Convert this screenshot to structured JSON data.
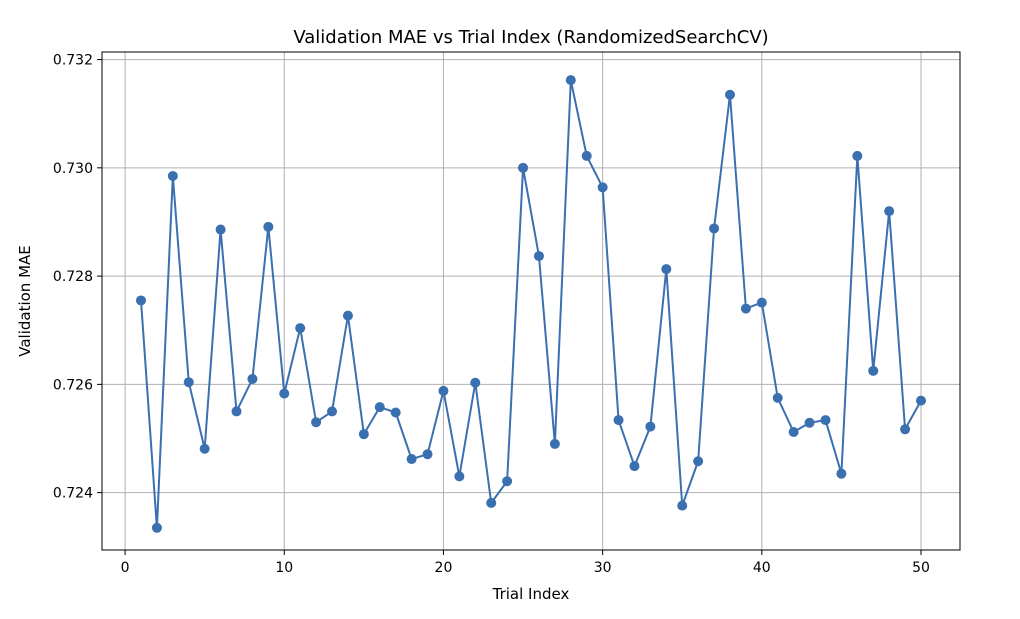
{
  "chart_data": {
    "type": "line",
    "title": "Validation MAE vs Trial Index (RandomizedSearchCV)",
    "xlabel": "Trial Index",
    "ylabel": "Validation MAE",
    "xlim": [
      -1.45,
      52.45
    ],
    "ylim": [
      0.72294,
      0.73214
    ],
    "xticks": [
      0,
      10,
      20,
      30,
      40,
      50
    ],
    "xtick_labels": [
      "0",
      "10",
      "20",
      "30",
      "40",
      "50"
    ],
    "yticks": [
      0.724,
      0.726,
      0.728,
      0.73,
      0.732
    ],
    "ytick_labels": [
      "0.724",
      "0.726",
      "0.728",
      "0.730",
      "0.732"
    ],
    "grid": true,
    "line_color": "#3a6fb0",
    "series": [
      {
        "x": [
          1,
          2,
          3,
          4,
          5,
          6,
          7,
          8,
          9,
          10,
          11,
          12,
          13,
          14,
          15,
          16,
          17,
          18,
          19,
          20,
          21,
          22,
          23,
          24,
          25,
          26,
          27,
          28,
          29,
          30,
          31,
          32,
          33,
          34,
          35,
          36,
          37,
          38,
          39,
          40,
          41,
          42,
          43,
          44,
          45,
          46,
          47,
          48,
          49,
          50
        ],
        "values": [
          0.72755,
          0.72335,
          0.72985,
          0.72604,
          0.72481,
          0.72886,
          0.7255,
          0.7261,
          0.72891,
          0.72583,
          0.72704,
          0.7253,
          0.7255,
          0.72727,
          0.72508,
          0.72558,
          0.72548,
          0.72462,
          0.72471,
          0.72588,
          0.7243,
          0.72603,
          0.72381,
          0.72421,
          0.73,
          0.72837,
          0.7249,
          0.73162,
          0.73022,
          0.72964,
          0.72534,
          0.72449,
          0.72522,
          0.72813,
          0.72376,
          0.72458,
          0.72888,
          0.73135,
          0.7274,
          0.72751,
          0.72575,
          0.72512,
          0.72529,
          0.72534,
          0.72435,
          0.73022,
          0.72625,
          0.7292,
          0.72517,
          0.7257
        ]
      }
    ]
  }
}
